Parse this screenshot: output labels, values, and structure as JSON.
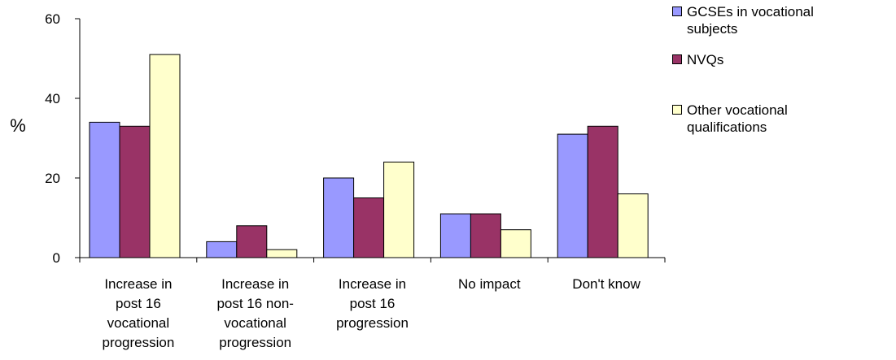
{
  "chart_data": {
    "type": "bar",
    "ylabel": "%",
    "ylim": [
      0,
      60
    ],
    "yticks": [
      0,
      20,
      40,
      60
    ],
    "categories": [
      [
        "Increase in",
        "post 16",
        "vocational",
        "progression"
      ],
      [
        "Increase in",
        "post 16 non-",
        "vocational",
        "progression"
      ],
      [
        "Increase in",
        "post 16",
        "progression"
      ],
      [
        "No impact"
      ],
      [
        "Don't know"
      ]
    ],
    "series": [
      {
        "name": "GCSEs in vocational subjects",
        "legend_lines": [
          "GCSEs in vocational",
          "subjects"
        ],
        "color": "#9999ff",
        "values": [
          34,
          4,
          20,
          11,
          31
        ]
      },
      {
        "name": "NVQs",
        "legend_lines": [
          "NVQs"
        ],
        "color": "#993366",
        "values": [
          33,
          8,
          15,
          11,
          33
        ]
      },
      {
        "name": "Other vocational qualifications",
        "legend_lines": [
          "Other vocational",
          "qualifications"
        ],
        "color": "#ffffcc",
        "values": [
          51,
          2,
          24,
          7,
          16
        ]
      }
    ],
    "legend_position": "right",
    "grid": false
  }
}
